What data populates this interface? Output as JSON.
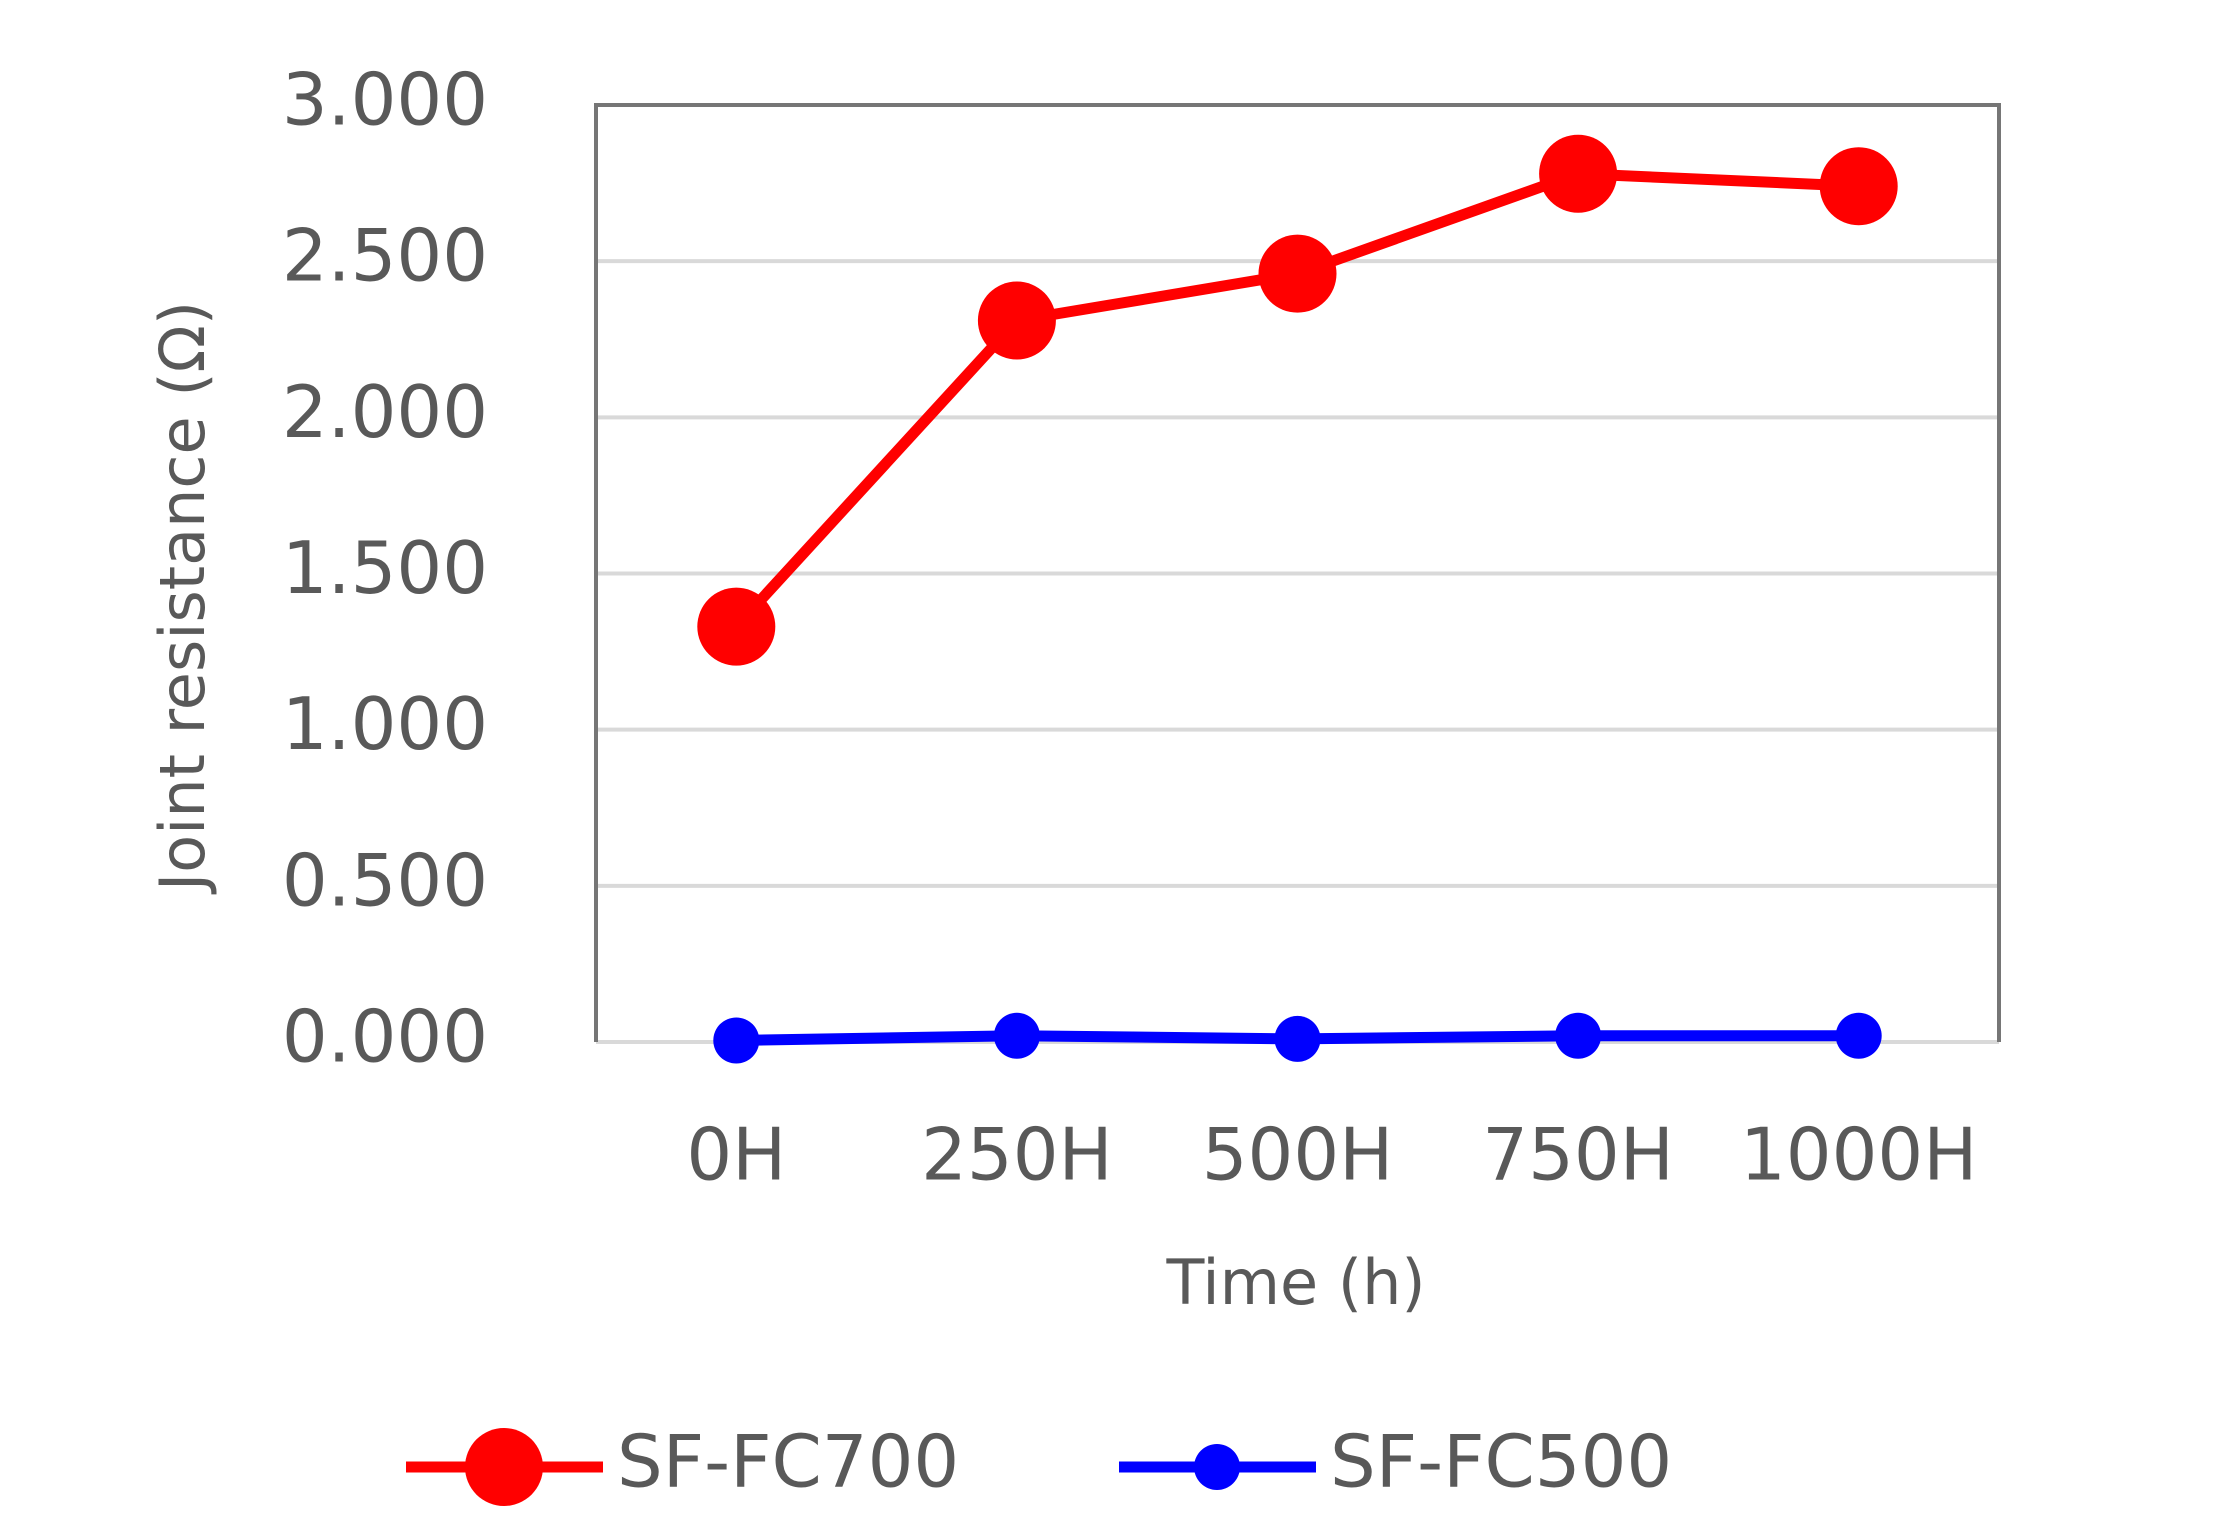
{
  "chart_data": {
    "type": "line",
    "categories": [
      "0H",
      "250H",
      "500H",
      "750H",
      "1000H"
    ],
    "series": [
      {
        "name": "SF-FC700",
        "color": "#ff0000",
        "values": [
          1.33,
          2.31,
          2.46,
          2.78,
          2.74
        ]
      },
      {
        "name": "SF-FC500",
        "color": "#0000ff",
        "values": [
          0.005,
          0.02,
          0.01,
          0.02,
          0.02
        ]
      }
    ],
    "x_label": "Time (h)",
    "y_label": "Joint resistance (Ω)",
    "ylim": [
      0,
      3
    ],
    "yticks": [
      {
        "value": 0,
        "label": "0.000"
      },
      {
        "value": 0.5,
        "label": "0.500"
      },
      {
        "value": 1,
        "label": "1.000"
      },
      {
        "value": 1.5,
        "label": "1.500"
      },
      {
        "value": 2,
        "label": "2.000"
      },
      {
        "value": 2.5,
        "label": "2.500"
      },
      {
        "value": 3,
        "label": "3.000"
      }
    ],
    "grid": true,
    "legend": "bottom"
  }
}
